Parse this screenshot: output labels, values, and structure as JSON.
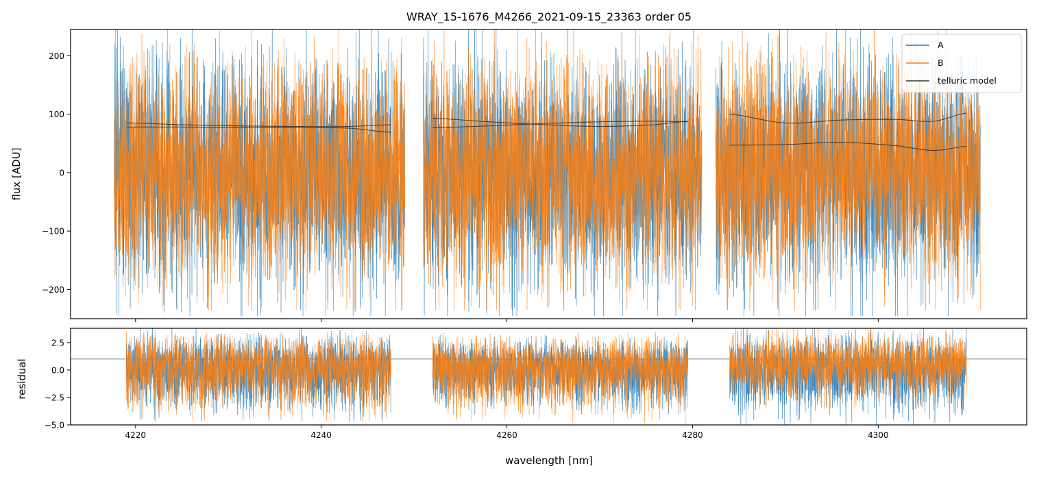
{
  "chart_data": {
    "type": "line",
    "title": "WRAY_15-1676_M4266_2021-09-15_23363  order 05",
    "xlabel": "wavelength [nm]",
    "xlim": [
      4213.0,
      4316.0
    ],
    "x_ticks": [
      4220,
      4240,
      4260,
      4280,
      4300
    ],
    "x_tick_labels": [
      "4220",
      "4240",
      "4260",
      "4280",
      "4300"
    ],
    "colors": {
      "A": "#1f77b4",
      "B": "#ff7f0e",
      "telluric": "#333333",
      "ref_line": "#555555"
    },
    "panels": [
      {
        "name": "flux",
        "ylabel": "flux [ADU]",
        "ylim": [
          -250,
          245
        ],
        "y_ticks": [
          -200,
          -100,
          0,
          100,
          200
        ],
        "y_tick_labels": [
          "−200",
          "−100",
          "0",
          "100",
          "200"
        ],
        "legend": {
          "placement": "upper right",
          "entries": [
            "A",
            "B",
            "telluric model"
          ]
        },
        "series": [
          {
            "name": "A",
            "segments": [
              {
                "x_range": [
                  4217.7,
                  4249.0
                ],
                "center": 0,
                "upper_extent": 245,
                "lower_extent": -245
              },
              {
                "x_range": [
                  4251.0,
                  4281.0
                ],
                "center": 0,
                "upper_extent": 245,
                "lower_extent": -245
              },
              {
                "x_range": [
                  4282.5,
                  4311.0
                ],
                "center": 0,
                "upper_extent": 245,
                "lower_extent": -245
              }
            ]
          },
          {
            "name": "B",
            "segments": [
              {
                "x_range": [
                  4217.7,
                  4249.0
                ],
                "center": 0,
                "upper_extent": 245,
                "lower_extent": -235
              },
              {
                "x_range": [
                  4251.0,
                  4281.0
                ],
                "center": 0,
                "upper_extent": 245,
                "lower_extent": -235
              },
              {
                "x_range": [
                  4282.5,
                  4311.0
                ],
                "center": 0,
                "upper_extent": 245,
                "lower_extent": -235
              }
            ]
          },
          {
            "name": "telluric model",
            "curves": [
              {
                "x": [
                  4219,
                  4225,
                  4231,
                  4237,
                  4243,
                  4247.5
                ],
                "y": [
                  85,
                  82,
                  80,
                  79,
                  79,
                  82
                ]
              },
              {
                "x": [
                  4219,
                  4225,
                  4231,
                  4237,
                  4243,
                  4247.5
                ],
                "y": [
                  78,
                  78,
                  77,
                  77,
                  76,
                  69
                ]
              },
              {
                "x": [
                  4252,
                  4258,
                  4264,
                  4270,
                  4276,
                  4279.5
                ],
                "y": [
                  93,
                  87,
                  82,
                  79,
                  82,
                  88
                ]
              },
              {
                "x": [
                  4252,
                  4258,
                  4264,
                  4270,
                  4276,
                  4279.5
                ],
                "y": [
                  77,
                  80,
                  84,
                  87,
                  88,
                  87
                ]
              },
              {
                "x": [
                  4284,
                  4290,
                  4296,
                  4302,
                  4306,
                  4309.5
                ],
                "y": [
                  100,
                  85,
                  90,
                  91,
                  88,
                  102
                ]
              },
              {
                "x": [
                  4284,
                  4290,
                  4296,
                  4302,
                  4306,
                  4309.5
                ],
                "y": [
                  47,
                  48,
                  52,
                  46,
                  38,
                  45
                ]
              }
            ]
          }
        ]
      },
      {
        "name": "residual",
        "ylabel": "residual",
        "ylim": [
          -5.0,
          3.8
        ],
        "y_ticks": [
          -5.0,
          -2.5,
          0.0,
          2.5
        ],
        "y_tick_labels": [
          "−5.0",
          "−2.5",
          "0.0",
          "2.5"
        ],
        "reference_line": 1.0,
        "series": [
          {
            "name": "A",
            "segments": [
              {
                "x_range": [
                  4219.0,
                  4247.5
                ],
                "center": 0.2,
                "upper_extent": 3.8,
                "lower_extent": -4.7
              },
              {
                "x_range": [
                  4252.0,
                  4279.5
                ],
                "center": 0.2,
                "upper_extent": 3.2,
                "lower_extent": -4.0
              },
              {
                "x_range": [
                  4284.0,
                  4309.5
                ],
                "center": 0.2,
                "upper_extent": 3.8,
                "lower_extent": -5.0
              }
            ]
          },
          {
            "name": "B",
            "segments": [
              {
                "x_range": [
                  4219.0,
                  4247.5
                ],
                "center": 0.4,
                "upper_extent": 3.6,
                "lower_extent": -4.6
              },
              {
                "x_range": [
                  4252.0,
                  4279.5
                ],
                "center": 0.4,
                "upper_extent": 3.4,
                "lower_extent": -4.8
              },
              {
                "x_range": [
                  4284.0,
                  4309.5
                ],
                "center": 0.6,
                "upper_extent": 3.8,
                "lower_extent": -3.5
              }
            ]
          }
        ]
      }
    ]
  }
}
